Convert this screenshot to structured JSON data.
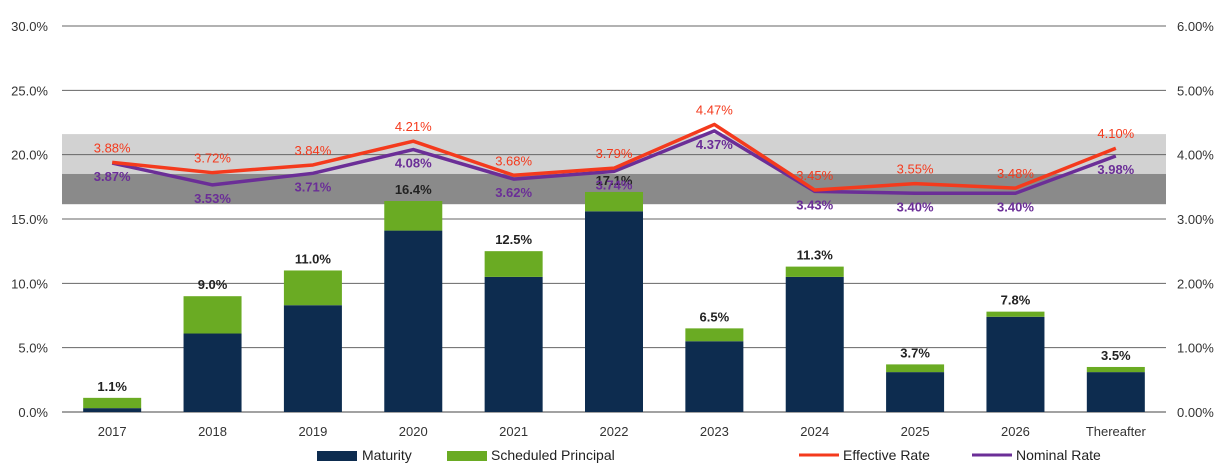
{
  "chart_data": {
    "type": "bar",
    "title": "",
    "xlabel": "",
    "ylabel": "",
    "categories": [
      "2017",
      "2018",
      "2019",
      "2020",
      "2021",
      "2022",
      "2023",
      "2024",
      "2025",
      "2026",
      "Thereafter"
    ],
    "ylim": [
      0,
      30
    ],
    "y2lim": [
      0,
      6
    ],
    "y_ticks": [
      "0.0%",
      "5.0%",
      "10.0%",
      "15.0%",
      "20.0%",
      "25.0%",
      "30.0%"
    ],
    "y2_ticks": [
      "0.00%",
      "1.00%",
      "2.00%",
      "3.00%",
      "4.00%",
      "5.00%",
      "6.00%"
    ],
    "series": [
      {
        "name": "Maturity",
        "kind": "bar",
        "color": "#0d2c4f",
        "values": [
          0.3,
          6.1,
          8.3,
          14.1,
          10.5,
          15.6,
          5.5,
          10.5,
          3.1,
          7.4,
          3.1
        ]
      },
      {
        "name": "Scheduled Principal",
        "kind": "bar",
        "color": "#6aab23",
        "values": [
          0.8,
          2.9,
          2.7,
          2.3,
          2.0,
          1.5,
          1.0,
          0.8,
          0.6,
          0.4,
          0.4
        ]
      },
      {
        "name": "Effective Rate",
        "kind": "line",
        "axis": "right",
        "color": "#f43a1d",
        "values": [
          3.88,
          3.72,
          3.84,
          4.21,
          3.68,
          3.79,
          4.47,
          3.45,
          3.55,
          3.48,
          4.1
        ]
      },
      {
        "name": "Nominal Rate",
        "kind": "line",
        "axis": "right",
        "color": "#6b2e97",
        "values": [
          3.87,
          3.53,
          3.71,
          4.08,
          3.62,
          3.74,
          4.37,
          3.43,
          3.4,
          3.4,
          3.98
        ]
      }
    ],
    "totals": [
      "1.1%",
      "9.0%",
      "11.0%",
      "16.4%",
      "12.5%",
      "17.1%",
      "6.5%",
      "11.3%",
      "3.7%",
      "7.8%",
      "3.5%"
    ],
    "effective_labels": [
      "3.88%",
      "3.72%",
      "3.84%",
      "4.21%",
      "3.68%",
      "3.79%",
      "4.47%",
      "3.45%",
      "3.55%",
      "3.48%",
      "4.10%"
    ],
    "nominal_labels": [
      "3.87%",
      "3.53%",
      "3.71%",
      "4.08%",
      "3.62%",
      "3.74%",
      "4.37%",
      "3.43%",
      "3.40%",
      "3.40%",
      "3.98%"
    ],
    "bands": [
      {
        "name": "light-band",
        "from": 3.7,
        "to": 4.32,
        "color": "#d2d2d2"
      },
      {
        "name": "dark-band",
        "from": 3.23,
        "to": 3.7,
        "color": "#8a8a8a"
      }
    ],
    "grid": true,
    "legend_position": "bottom-center"
  }
}
